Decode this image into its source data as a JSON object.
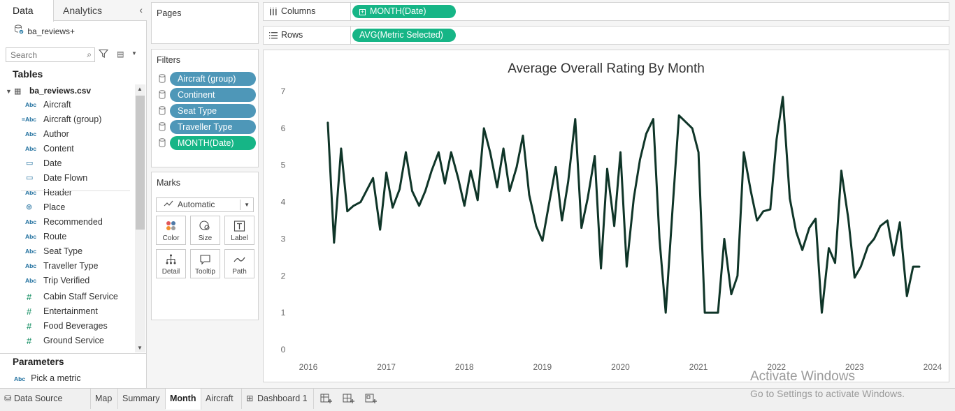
{
  "left_pane": {
    "tab_data": "Data",
    "tab_analytics": "Analytics",
    "datasource": "ba_reviews+",
    "search_placeholder": "Search",
    "tables_heading": "Tables",
    "table_name": "ba_reviews.csv",
    "fields": [
      {
        "type": "Abc",
        "name": "Aircraft"
      },
      {
        "type": "=Abc",
        "name": "Aircraft (group)"
      },
      {
        "type": "Abc",
        "name": "Author"
      },
      {
        "type": "Abc",
        "name": "Content"
      },
      {
        "type": "calendar",
        "name": "Date"
      },
      {
        "type": "calendar",
        "name": "Date Flown"
      },
      {
        "type": "Abc",
        "name": "Header"
      },
      {
        "type": "globe",
        "name": "Place"
      },
      {
        "type": "Abc",
        "name": "Recommended"
      },
      {
        "type": "Abc",
        "name": "Route"
      },
      {
        "type": "Abc",
        "name": "Seat Type"
      },
      {
        "type": "Abc",
        "name": "Traveller Type"
      },
      {
        "type": "Abc",
        "name": "Trip Verified"
      },
      {
        "type": "#",
        "name": "Cabin Staff Service"
      },
      {
        "type": "#",
        "name": "Entertainment"
      },
      {
        "type": "#",
        "name": "Food Beverages"
      },
      {
        "type": "#",
        "name": "Ground Service"
      }
    ],
    "parameters_heading": "Parameters",
    "parameter": {
      "type": "Abc",
      "name": "Pick a metric"
    }
  },
  "cards": {
    "pages_title": "Pages",
    "filters_title": "Filters",
    "filters": [
      {
        "label": "Aircraft (group)",
        "color": "blue"
      },
      {
        "label": "Continent",
        "color": "blue"
      },
      {
        "label": "Seat Type",
        "color": "blue"
      },
      {
        "label": "Traveller Type",
        "color": "blue"
      },
      {
        "label": "MONTH(Date)",
        "color": "green"
      }
    ],
    "marks_title": "Marks",
    "mark_type": "Automatic",
    "mark_buttons": [
      "Color",
      "Size",
      "Label",
      "Detail",
      "Tooltip",
      "Path"
    ]
  },
  "shelves": {
    "columns_label": "Columns",
    "columns_pill": "MONTH(Date)",
    "rows_label": "Rows",
    "rows_pill": "AVG(Metric Selected)"
  },
  "bottom_tabs": {
    "data_source": "Data Source",
    "sheets": [
      "Map",
      "Summary",
      "Month",
      "Aircraft"
    ],
    "active_sheet": "Month",
    "dashboard": "Dashboard 1"
  },
  "watermark": {
    "line1": "Activate Windows",
    "line2": "Go to Settings to activate Windows."
  },
  "colors": {
    "line": "#0f3528",
    "green_pill": "#16b586",
    "blue_pill": "#4e97b8"
  },
  "chart_data": {
    "type": "line",
    "title": "Average Overall Rating By Month",
    "xlabel": "",
    "ylabel": "",
    "x_ticks": [
      "2016",
      "2017",
      "2018",
      "2019",
      "2020",
      "2021",
      "2022",
      "2023",
      "2024"
    ],
    "y_ticks": [
      "0",
      "1",
      "2",
      "3",
      "4",
      "5",
      "6",
      "7"
    ],
    "xlim": [
      2016.0,
      2024.0
    ],
    "ylim": [
      0,
      7
    ],
    "grid": false,
    "series": [
      {
        "x": [
          2016.25,
          2016.33,
          2016.42,
          2016.5,
          2016.58,
          2016.67,
          2016.83,
          2016.92,
          2017.0,
          2017.08,
          2017.17,
          2017.25,
          2017.33,
          2017.42,
          2017.5,
          2017.58,
          2017.67,
          2017.75,
          2017.83,
          2017.92,
          2018.0,
          2018.08,
          2018.17,
          2018.25,
          2018.33,
          2018.42,
          2018.5,
          2018.58,
          2018.67,
          2018.75,
          2018.83,
          2018.92,
          2019.0,
          2019.08,
          2019.17,
          2019.25,
          2019.33,
          2019.42,
          2019.5,
          2019.58,
          2019.67,
          2019.75,
          2019.83,
          2019.92,
          2020.0,
          2020.08,
          2020.17,
          2020.25,
          2020.33,
          2020.42,
          2020.5,
          2020.58,
          2020.67,
          2020.75,
          2020.92,
          2021.0,
          2021.08,
          2021.17,
          2021.25,
          2021.33,
          2021.42,
          2021.5,
          2021.58,
          2021.67,
          2021.75,
          2021.83,
          2021.92,
          2022.0,
          2022.08,
          2022.17,
          2022.25,
          2022.33,
          2022.42,
          2022.5,
          2022.58,
          2022.67,
          2022.75,
          2022.83,
          2022.92,
          2023.0,
          2023.08,
          2023.17,
          2023.25,
          2023.33,
          2023.42,
          2023.5,
          2023.58,
          2023.67,
          2023.75,
          2023.83
        ],
        "y": [
          6.15,
          2.9,
          5.45,
          3.75,
          3.9,
          4.0,
          4.65,
          3.25,
          4.8,
          3.85,
          4.35,
          5.35,
          4.3,
          3.9,
          4.3,
          4.85,
          5.35,
          4.5,
          5.35,
          4.65,
          3.9,
          4.85,
          4.05,
          6.0,
          5.35,
          4.4,
          5.45,
          4.3,
          4.95,
          5.8,
          4.2,
          3.35,
          2.95,
          3.9,
          4.95,
          3.5,
          4.55,
          6.25,
          3.3,
          4.1,
          5.25,
          2.2,
          4.9,
          3.35,
          5.35,
          2.25,
          4.1,
          5.15,
          5.85,
          6.25,
          3.0,
          1.0,
          3.9,
          6.35,
          6.0,
          5.35,
          1.0,
          1.0,
          1.0,
          3.0,
          1.5,
          2.0,
          5.35,
          4.3,
          3.5,
          3.75,
          3.8,
          5.7,
          6.85,
          4.1,
          3.2,
          2.7,
          3.3,
          3.55,
          1.0,
          2.75,
          2.35,
          4.85,
          3.55,
          1.95,
          2.25,
          2.8,
          3.0,
          3.35,
          3.5,
          2.55,
          3.45,
          1.45,
          2.25,
          2.25
        ]
      }
    ]
  }
}
